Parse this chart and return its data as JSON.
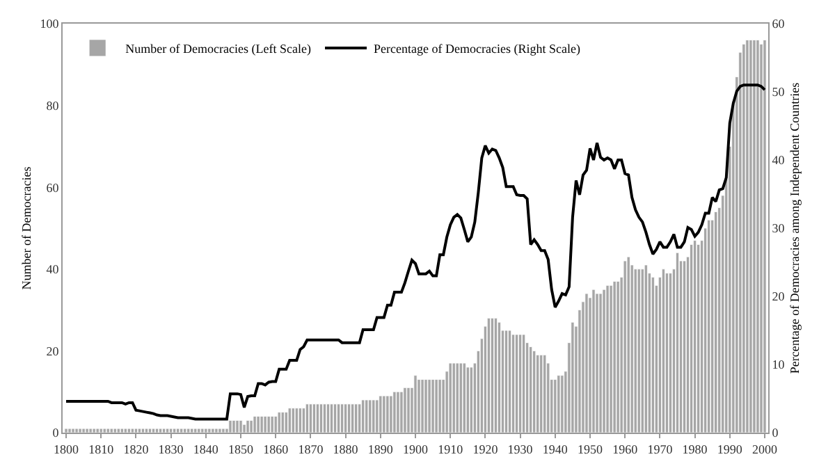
{
  "chart_data": {
    "type": "bar",
    "x": [
      1800,
      1801,
      1802,
      1803,
      1804,
      1805,
      1806,
      1807,
      1808,
      1809,
      1810,
      1811,
      1812,
      1813,
      1814,
      1815,
      1816,
      1817,
      1818,
      1819,
      1820,
      1821,
      1822,
      1823,
      1824,
      1825,
      1826,
      1827,
      1828,
      1829,
      1830,
      1831,
      1832,
      1833,
      1834,
      1835,
      1836,
      1837,
      1838,
      1839,
      1840,
      1841,
      1842,
      1843,
      1844,
      1845,
      1846,
      1847,
      1848,
      1849,
      1850,
      1851,
      1852,
      1853,
      1854,
      1855,
      1856,
      1857,
      1858,
      1859,
      1860,
      1861,
      1862,
      1863,
      1864,
      1865,
      1866,
      1867,
      1868,
      1869,
      1870,
      1871,
      1872,
      1873,
      1874,
      1875,
      1876,
      1877,
      1878,
      1879,
      1880,
      1881,
      1882,
      1883,
      1884,
      1885,
      1886,
      1887,
      1888,
      1889,
      1890,
      1891,
      1892,
      1893,
      1894,
      1895,
      1896,
      1897,
      1898,
      1899,
      1900,
      1901,
      1902,
      1903,
      1904,
      1905,
      1906,
      1907,
      1908,
      1909,
      1910,
      1911,
      1912,
      1913,
      1914,
      1915,
      1916,
      1917,
      1918,
      1919,
      1920,
      1921,
      1922,
      1923,
      1924,
      1925,
      1926,
      1927,
      1928,
      1929,
      1930,
      1931,
      1932,
      1933,
      1934,
      1935,
      1936,
      1937,
      1938,
      1939,
      1940,
      1941,
      1942,
      1943,
      1944,
      1945,
      1946,
      1947,
      1948,
      1949,
      1950,
      1951,
      1952,
      1953,
      1954,
      1955,
      1956,
      1957,
      1958,
      1959,
      1960,
      1961,
      1962,
      1963,
      1964,
      1965,
      1966,
      1967,
      1968,
      1969,
      1970,
      1971,
      1972,
      1973,
      1974,
      1975,
      1976,
      1977,
      1978,
      1979,
      1980,
      1981,
      1982,
      1983,
      1984,
      1985,
      1986,
      1987,
      1988,
      1989,
      1990,
      1991,
      1992,
      1993,
      1994,
      1995,
      1996,
      1997,
      1998,
      1999,
      2000
    ],
    "series": [
      {
        "name": "Number of Democracies (Left Scale)",
        "color": "#a6a6a6",
        "values": [
          1,
          1,
          1,
          1,
          1,
          1,
          1,
          1,
          1,
          1,
          1,
          1,
          1,
          1,
          1,
          1,
          1,
          1,
          1,
          1,
          1,
          1,
          1,
          1,
          1,
          1,
          1,
          1,
          1,
          1,
          1,
          1,
          1,
          1,
          1,
          1,
          1,
          1,
          1,
          1,
          1,
          1,
          1,
          1,
          1,
          1,
          1,
          3,
          3,
          3,
          3,
          2,
          3,
          3,
          4,
          4,
          4,
          4,
          4,
          4,
          4,
          5,
          5,
          5,
          6,
          6,
          6,
          6,
          6,
          7,
          7,
          7,
          7,
          7,
          7,
          7,
          7,
          7,
          7,
          7,
          7,
          7,
          7,
          7,
          7,
          8,
          8,
          8,
          8,
          8,
          9,
          9,
          9,
          9,
          10,
          10,
          10,
          11,
          11,
          11,
          14,
          13,
          13,
          13,
          13,
          13,
          13,
          13,
          13,
          15,
          17,
          17,
          17,
          17,
          17,
          16,
          16,
          17,
          20,
          23,
          26,
          28,
          28,
          28,
          27,
          25,
          25,
          25,
          24,
          24,
          24,
          24,
          22,
          21,
          20,
          19,
          19,
          19,
          17,
          13,
          13,
          14,
          14,
          15,
          22,
          27,
          26,
          30,
          32,
          34,
          33,
          35,
          34,
          34,
          35,
          36,
          36,
          37,
          37,
          38,
          42,
          43,
          41,
          40,
          40,
          40,
          41,
          39,
          38,
          36,
          38,
          40,
          39,
          39,
          40,
          44,
          42,
          42,
          43,
          46,
          47,
          46,
          47,
          50,
          52,
          52,
          54,
          55,
          58,
          62,
          70,
          81,
          87,
          93,
          95,
          96,
          96,
          96,
          96,
          95,
          96
        ]
      },
      {
        "name": "Percentage of Democracies (Right Scale)",
        "type": "line",
        "axis": "y2",
        "color": "#000000",
        "values": [
          4.6,
          4.6,
          4.6,
          4.6,
          4.6,
          4.6,
          4.6,
          4.6,
          4.6,
          4.6,
          4.6,
          4.6,
          4.6,
          4.4,
          4.4,
          4.4,
          4.4,
          4.2,
          4.4,
          4.4,
          3.3,
          3.2,
          3.1,
          3.0,
          2.9,
          2.8,
          2.6,
          2.5,
          2.5,
          2.5,
          2.4,
          2.3,
          2.2,
          2.2,
          2.2,
          2.2,
          2.1,
          2.0,
          2.0,
          2.0,
          2.0,
          2.0,
          2.0,
          2.0,
          2.0,
          2.0,
          2.0,
          5.7,
          5.7,
          5.7,
          5.6,
          3.7,
          5.3,
          5.4,
          5.4,
          7.2,
          7.2,
          7.0,
          7.4,
          7.5,
          7.5,
          9.3,
          9.3,
          9.3,
          10.6,
          10.6,
          10.6,
          12.2,
          12.6,
          13.6,
          13.6,
          13.6,
          13.6,
          13.6,
          13.6,
          13.6,
          13.6,
          13.6,
          13.6,
          13.2,
          13.2,
          13.2,
          13.2,
          13.2,
          13.2,
          15.1,
          15.1,
          15.1,
          15.1,
          16.9,
          16.9,
          16.9,
          18.7,
          18.7,
          20.6,
          20.6,
          20.6,
          22,
          23.7,
          25.3,
          24.8,
          23.3,
          23.3,
          23.3,
          23.7,
          23,
          23,
          26.1,
          26.1,
          28.7,
          30.5,
          31.6,
          32,
          31.5,
          29.8,
          28,
          28.7,
          30.9,
          35.2,
          40.3,
          42.1,
          41,
          41.6,
          41.4,
          40.3,
          38.9,
          36.1,
          36.1,
          36.1,
          34.9,
          34.8,
          34.8,
          34.3,
          27.6,
          28.3,
          27.6,
          26.7,
          26.7,
          25.4,
          21,
          18.4,
          19.3,
          20.4,
          20.2,
          21.4,
          31.6,
          37,
          34.9,
          37.8,
          38.5,
          41.7,
          40,
          42.5,
          40.4,
          40,
          40.3,
          40,
          38.7,
          40,
          40,
          38,
          37.8,
          34.5,
          32.7,
          31.6,
          30.9,
          29.4,
          27.6,
          26.2,
          26.9,
          28,
          27.2,
          27.2,
          28,
          29.1,
          27.2,
          27.2,
          28,
          30.1,
          29.8,
          28.8,
          29.4,
          30.5,
          32.2,
          32.2,
          34.5,
          33.9,
          35.6,
          35.8,
          37.4,
          45.4,
          48.3,
          50.1,
          50.8,
          51,
          51,
          51,
          51,
          51,
          50.8,
          50.3
        ]
      }
    ],
    "ylabel": "Number of Democracies",
    "y2label": "Percentage of Democracies among Independent Countries",
    "xlim": [
      1799,
      2001
    ],
    "xticks": [
      1800,
      1810,
      1820,
      1830,
      1840,
      1850,
      1860,
      1870,
      1880,
      1890,
      1900,
      1910,
      1920,
      1930,
      1940,
      1950,
      1960,
      1970,
      1980,
      1990,
      2000
    ],
    "ylim": [
      0,
      100
    ],
    "yticks": [
      0,
      20,
      40,
      60,
      80,
      100
    ],
    "y2lim": [
      0,
      60
    ],
    "y2ticks": [
      0,
      10,
      20,
      30,
      40,
      50,
      60
    ],
    "legend": "top left"
  }
}
